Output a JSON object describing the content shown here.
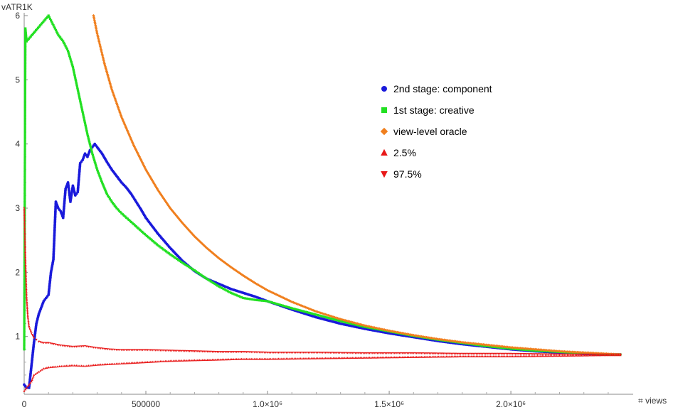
{
  "chart_data": {
    "type": "scatter",
    "xlabel": "⌗ views",
    "ylabel": "vATR1K",
    "xlim": [
      0,
      2450000
    ],
    "ylim": [
      0.1,
      6
    ],
    "x_ticks": [
      {
        "value": 0,
        "label": "0"
      },
      {
        "value": 500000,
        "label": "500000"
      },
      {
        "value": 1000000,
        "label": "1.0×10⁶"
      },
      {
        "value": 1500000,
        "label": "1.5×10⁶"
      },
      {
        "value": 2000000,
        "label": "2.0×10⁶"
      }
    ],
    "y_ticks": [
      {
        "value": 1,
        "label": "1"
      },
      {
        "value": 2,
        "label": "2"
      },
      {
        "value": 3,
        "label": "3"
      },
      {
        "value": 4,
        "label": "4"
      },
      {
        "value": 5,
        "label": "5"
      },
      {
        "value": 6,
        "label": "6"
      }
    ],
    "legend_position": "top-right inside plot",
    "series": [
      {
        "name": "2nd stage: component",
        "marker": "circle",
        "color": "#1a1adb",
        "x": [
          0,
          10000,
          20000,
          30000,
          40000,
          50000,
          60000,
          70000,
          80000,
          90000,
          100000,
          110000,
          120000,
          130000,
          140000,
          150000,
          160000,
          170000,
          180000,
          190000,
          200000,
          210000,
          220000,
          230000,
          240000,
          250000,
          260000,
          270000,
          280000,
          290000,
          300000,
          320000,
          340000,
          360000,
          380000,
          400000,
          420000,
          440000,
          460000,
          480000,
          500000,
          550000,
          600000,
          650000,
          700000,
          750000,
          800000,
          850000,
          900000,
          950000,
          1000000,
          1100000,
          1200000,
          1300000,
          1400000,
          1500000,
          1600000,
          1700000,
          1800000,
          1900000,
          2000000,
          2100000,
          2200000,
          2300000,
          2400000,
          2450000
        ],
        "y": [
          0.25,
          0.2,
          0.2,
          0.55,
          0.9,
          1.2,
          1.35,
          1.45,
          1.55,
          1.6,
          1.65,
          2.0,
          2.2,
          3.1,
          3.0,
          2.95,
          2.85,
          3.3,
          3.4,
          3.1,
          3.35,
          3.2,
          3.25,
          3.7,
          3.75,
          3.85,
          3.8,
          3.9,
          3.95,
          4.0,
          3.95,
          3.85,
          3.72,
          3.6,
          3.5,
          3.4,
          3.32,
          3.22,
          3.1,
          2.98,
          2.85,
          2.6,
          2.38,
          2.18,
          2.02,
          1.9,
          1.82,
          1.74,
          1.68,
          1.62,
          1.55,
          1.42,
          1.3,
          1.2,
          1.12,
          1.05,
          0.99,
          0.93,
          0.88,
          0.84,
          0.8,
          0.77,
          0.75,
          0.73,
          0.72,
          0.72
        ]
      },
      {
        "name": "1st stage: creative",
        "marker": "square",
        "color": "#22e022",
        "x": [
          0,
          5000,
          10000,
          100000,
          120000,
          140000,
          160000,
          180000,
          200000,
          220000,
          240000,
          260000,
          280000,
          300000,
          320000,
          340000,
          360000,
          380000,
          400000,
          450000,
          500000,
          550000,
          600000,
          650000,
          700000,
          750000,
          800000,
          850000,
          900000,
          950000,
          1000000,
          1100000,
          1200000,
          1300000,
          1400000,
          1500000,
          1600000,
          1700000,
          1800000,
          1900000,
          2000000,
          2100000,
          2200000,
          2300000,
          2400000,
          2450000
        ],
        "y": [
          0.8,
          5.8,
          5.6,
          6.0,
          5.85,
          5.7,
          5.6,
          5.45,
          5.2,
          4.85,
          4.5,
          4.15,
          3.85,
          3.6,
          3.4,
          3.22,
          3.1,
          3.0,
          2.92,
          2.75,
          2.58,
          2.42,
          2.28,
          2.15,
          2.03,
          1.9,
          1.78,
          1.68,
          1.6,
          1.57,
          1.55,
          1.44,
          1.34,
          1.24,
          1.15,
          1.08,
          1.01,
          0.95,
          0.9,
          0.85,
          0.81,
          0.78,
          0.76,
          0.74,
          0.72,
          0.72
        ]
      },
      {
        "name": "view-level oracle",
        "marker": "diamond",
        "color": "#f07f1e",
        "x": [
          285000,
          300000,
          330000,
          360000,
          400000,
          450000,
          500000,
          550000,
          600000,
          650000,
          700000,
          750000,
          800000,
          850000,
          900000,
          950000,
          1000000,
          1100000,
          1200000,
          1300000,
          1400000,
          1500000,
          1600000,
          1700000,
          1800000,
          1900000,
          2000000,
          2100000,
          2200000,
          2300000,
          2400000,
          2450000
        ],
        "y": [
          6.0,
          5.72,
          5.25,
          4.85,
          4.42,
          3.98,
          3.6,
          3.28,
          3.0,
          2.77,
          2.56,
          2.38,
          2.22,
          2.08,
          1.95,
          1.83,
          1.72,
          1.54,
          1.39,
          1.27,
          1.17,
          1.09,
          1.02,
          0.96,
          0.91,
          0.87,
          0.83,
          0.8,
          0.77,
          0.75,
          0.73,
          0.72
        ]
      },
      {
        "name": "2.5%",
        "marker": "triangle-up",
        "color": "#e81818",
        "x": [
          0,
          10000,
          20000,
          30000,
          40000,
          60000,
          80000,
          100000,
          130000,
          160000,
          200000,
          250000,
          300000,
          350000,
          400000,
          500000,
          600000,
          700000,
          800000,
          900000,
          1000000,
          1200000,
          1400000,
          1600000,
          1800000,
          2000000,
          2200000,
          2400000,
          2450000
        ],
        "y": [
          0.15,
          0.2,
          0.25,
          0.3,
          0.4,
          0.45,
          0.5,
          0.52,
          0.53,
          0.54,
          0.55,
          0.54,
          0.56,
          0.57,
          0.58,
          0.6,
          0.62,
          0.63,
          0.64,
          0.65,
          0.65,
          0.66,
          0.67,
          0.68,
          0.69,
          0.69,
          0.7,
          0.71,
          0.71
        ]
      },
      {
        "name": "97.5%",
        "marker": "triangle-down",
        "color": "#e81818",
        "x": [
          0,
          5000,
          10000,
          15000,
          20000,
          30000,
          40000,
          50000,
          60000,
          80000,
          100000,
          150000,
          200000,
          250000,
          300000,
          350000,
          400000,
          500000,
          600000,
          700000,
          800000,
          900000,
          1000000,
          1200000,
          1400000,
          1600000,
          1800000,
          2000000,
          2200000,
          2400000,
          2450000
        ],
        "y": [
          3.0,
          2.2,
          1.6,
          1.3,
          1.15,
          1.05,
          0.98,
          0.95,
          0.92,
          0.9,
          0.9,
          0.86,
          0.84,
          0.85,
          0.82,
          0.8,
          0.79,
          0.79,
          0.78,
          0.77,
          0.76,
          0.76,
          0.75,
          0.75,
          0.74,
          0.74,
          0.73,
          0.73,
          0.72,
          0.72,
          0.72
        ]
      }
    ]
  }
}
